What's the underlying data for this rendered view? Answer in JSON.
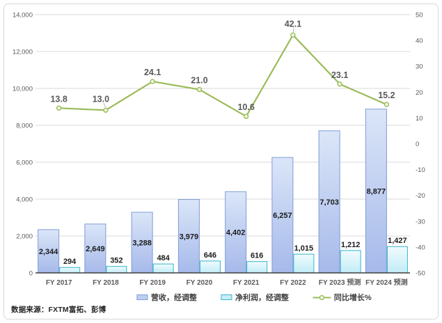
{
  "source_note": "数据来源：FXTM富拓、彭博",
  "colors": {
    "revenue_border": "#7f9bd7",
    "revenue_fill_top": "#dbe6f8",
    "revenue_fill_bottom": "#a6b9ea",
    "revenue_swatch": "#bdd0f1",
    "profit_border": "#35b4ca",
    "profit_fill_top": "#f0fbfe",
    "profit_fill_bottom": "#c2ecf6",
    "profit_swatch": "#c9edf7",
    "line_color": "#9bbb59",
    "marker_fill": "#eef5e2",
    "grid_color": "#d9d9d9",
    "axis_line_color": "#3f3f3f",
    "axis_text_color": "#595959",
    "bar_label_color": "#1a1a1a",
    "line_label_color": "#595959",
    "leader_color": "#a6a6a6"
  },
  "chart_data": {
    "type": "bar",
    "subtype": "bar+line combo, dual axis",
    "title": "",
    "grid": true,
    "legend_position": "bottom",
    "categories": [
      "FY 2017",
      "FY 2018",
      "FY 2019",
      "FY 2020",
      "FY 2021",
      "FY 2022",
      "FY 2023 预测",
      "FY 2024 预测"
    ],
    "series": [
      {
        "name": "营收，经调整",
        "type": "bar",
        "axis": "left",
        "values": [
          2344,
          2649,
          3288,
          3979,
          4402,
          6257,
          7703,
          8877
        ],
        "labels": [
          "2,344",
          "2,649",
          "3,288",
          "3,979",
          "4,402",
          "6,257",
          "7,703",
          "8,877"
        ]
      },
      {
        "name": "净利润，经调整",
        "type": "bar",
        "axis": "left",
        "values": [
          294,
          352,
          484,
          646,
          616,
          1015,
          1212,
          1427
        ],
        "labels": [
          "294",
          "352",
          "484",
          "646",
          "616",
          "1,015",
          "1,212",
          "1,427"
        ]
      },
      {
        "name": "同比增长%",
        "type": "line",
        "axis": "right",
        "values": [
          13.8,
          13.0,
          24.1,
          21.0,
          10.6,
          42.1,
          23.1,
          15.2
        ],
        "labels": [
          "13.8",
          "13.0",
          "24.1",
          "21.0",
          "10.6",
          "42.1",
          "23.1",
          "15.2"
        ]
      }
    ],
    "left_axis": {
      "min": 0,
      "max": 14000,
      "step": 2000,
      "ticks": [
        "0",
        "2,000",
        "4,000",
        "6,000",
        "8,000",
        "10,000",
        "12,000",
        "14,000"
      ]
    },
    "right_axis": {
      "min": -50,
      "max": 50,
      "step": 10,
      "ticks": [
        "-50",
        "-40",
        "-30",
        "-20",
        "-10",
        "0",
        "10",
        "20",
        "30",
        "40",
        "50"
      ]
    }
  }
}
